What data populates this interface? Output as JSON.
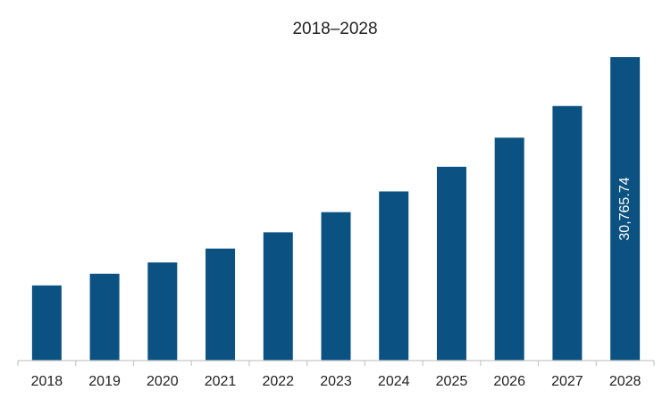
{
  "chart_data": {
    "type": "bar",
    "title": "2018–2028",
    "xlabel": "",
    "ylabel": "",
    "categories": [
      "2018",
      "2019",
      "2020",
      "2021",
      "2022",
      "2023",
      "2024",
      "2025",
      "2026",
      "2027",
      "2028"
    ],
    "series": [
      {
        "values": [
          7620,
          8800,
          9950,
          11350,
          13000,
          15050,
          17150,
          19650,
          22600,
          25810,
          30765.74
        ]
      }
    ],
    "data_labels": [
      {
        "category": "2028",
        "text": "30,765.74"
      }
    ],
    "bar_color": "#0b5282",
    "grid": false,
    "legend": "none",
    "ylim": [
      0,
      30765.74
    ]
  }
}
